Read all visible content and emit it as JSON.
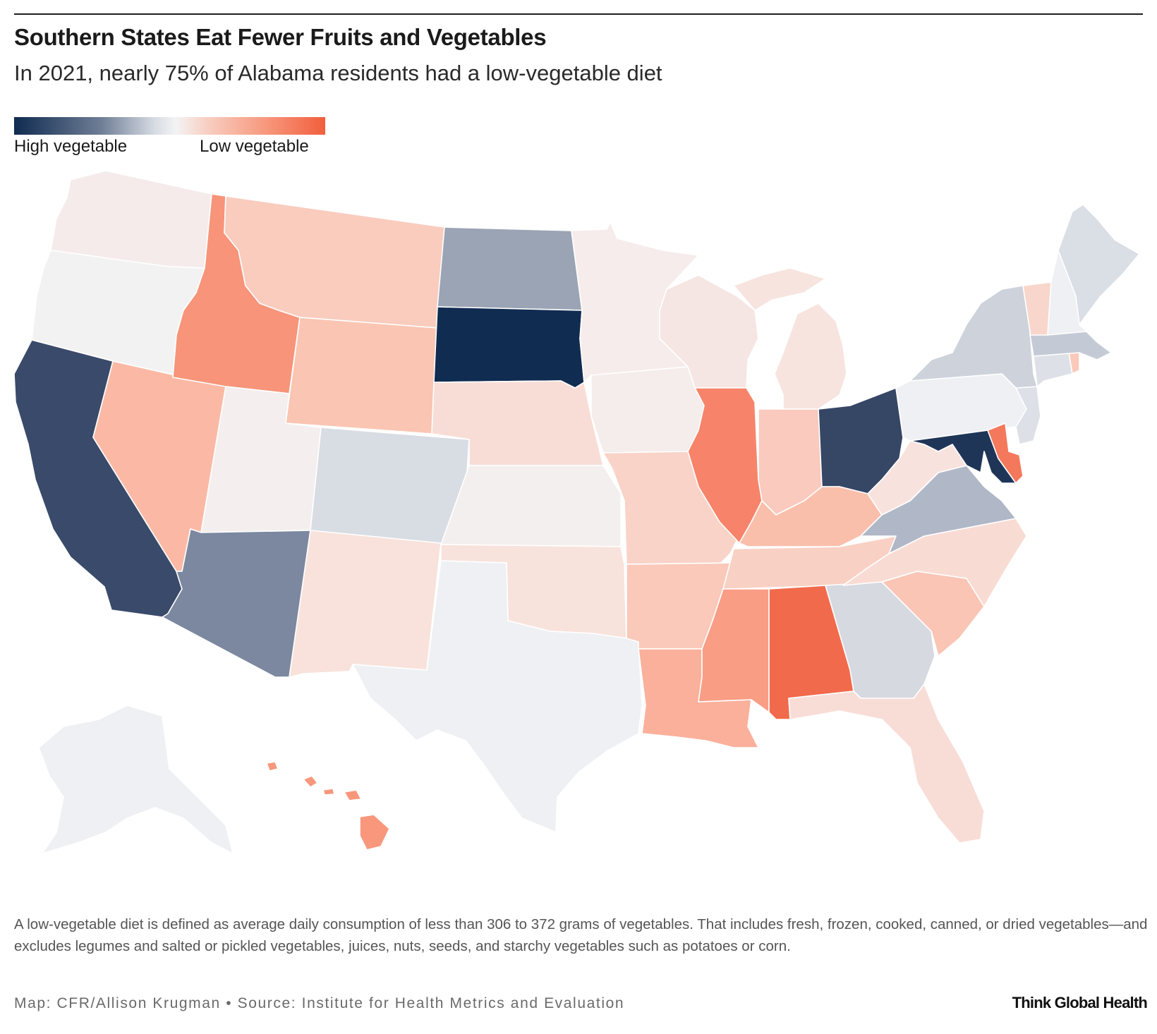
{
  "header": {
    "title": "Southern States Eat Fewer Fruits and Vegetables",
    "subtitle": "In 2021, nearly 75% of Alabama residents had a low-vegetable diet"
  },
  "legend": {
    "low_label": "High vegetable",
    "high_label": "Low vegetable",
    "colors": [
      "#0f2b50",
      "#6f7e96",
      "#d6dbe2",
      "#f3f3f4",
      "#f8cfc2",
      "#f79479",
      "#f15f3d"
    ]
  },
  "map": {
    "type": "choropleth",
    "regions": [
      {
        "name": "Washington",
        "color": "#f5ebea"
      },
      {
        "name": "Oregon",
        "color": "#f2f2f3"
      },
      {
        "name": "California",
        "color": "#3a4a6a"
      },
      {
        "name": "Nevada",
        "color": "#fbb9a5"
      },
      {
        "name": "Idaho",
        "color": "#f79479"
      },
      {
        "name": "Montana",
        "color": "#f9ccbe"
      },
      {
        "name": "Wyoming",
        "color": "#fac5b2"
      },
      {
        "name": "Utah",
        "color": "#f4eeee"
      },
      {
        "name": "Arizona",
        "color": "#7b889f"
      },
      {
        "name": "Colorado",
        "color": "#d8dce3"
      },
      {
        "name": "New Mexico",
        "color": "#f8e2db"
      },
      {
        "name": "North Dakota",
        "color": "#9ba4b4"
      },
      {
        "name": "South Dakota",
        "color": "#112c51"
      },
      {
        "name": "Nebraska",
        "color": "#f8ddd6"
      },
      {
        "name": "Kansas",
        "color": "#f4efef"
      },
      {
        "name": "Oklahoma",
        "color": "#f8e2dc"
      },
      {
        "name": "Texas",
        "color": "#eef0f3"
      },
      {
        "name": "Minnesota",
        "color": "#f5eceb"
      },
      {
        "name": "Iowa",
        "color": "#f5ecec"
      },
      {
        "name": "Missouri",
        "color": "#f9d3c8"
      },
      {
        "name": "Arkansas",
        "color": "#fac9b9"
      },
      {
        "name": "Louisiana",
        "color": "#fab09b"
      },
      {
        "name": "Wisconsin",
        "color": "#f6e6e3"
      },
      {
        "name": "Illinois",
        "color": "#f7846a"
      },
      {
        "name": "Michigan",
        "color": "#f7e4df"
      },
      {
        "name": "Indiana",
        "color": "#f9cabd"
      },
      {
        "name": "Ohio",
        "color": "#364665"
      },
      {
        "name": "Kentucky",
        "color": "#fabfab"
      },
      {
        "name": "Tennessee",
        "color": "#f9d0c4"
      },
      {
        "name": "Mississippi",
        "color": "#f99d85"
      },
      {
        "name": "Alabama",
        "color": "#f26a4c"
      },
      {
        "name": "Georgia",
        "color": "#d6d9e0"
      },
      {
        "name": "Florida",
        "color": "#f8ddd6"
      },
      {
        "name": "South Carolina",
        "color": "#fac5b5"
      },
      {
        "name": "North Carolina",
        "color": "#f8dcd4"
      },
      {
        "name": "Virginia",
        "color": "#b0b7c6"
      },
      {
        "name": "West Virginia",
        "color": "#f8e2dd"
      },
      {
        "name": "Maryland",
        "color": "#1f3558"
      },
      {
        "name": "Delaware",
        "color": "#f4785c"
      },
      {
        "name": "Pennsylvania",
        "color": "#eef0f3"
      },
      {
        "name": "New Jersey",
        "color": "#dde0e6"
      },
      {
        "name": "New York",
        "color": "#cdd2db"
      },
      {
        "name": "Connecticut",
        "color": "#dde1e7"
      },
      {
        "name": "Rhode Island",
        "color": "#fac9ba"
      },
      {
        "name": "Massachusetts",
        "color": "#c4cad5"
      },
      {
        "name": "Vermont",
        "color": "#f9d6cb"
      },
      {
        "name": "New Hampshire",
        "color": "#eef0f3"
      },
      {
        "name": "Maine",
        "color": "#dadee5"
      },
      {
        "name": "Alaska",
        "color": "#eef0f3"
      },
      {
        "name": "Hawaii",
        "color": "#f8977c"
      }
    ]
  },
  "footer": {
    "note": "A low-vegetable diet is defined as average daily consumption of less than 306 to 372 grams of vegetables. That includes fresh, frozen, cooked, canned, or dried vegetables—and excludes legumes and salted or pickled vegetables, juices, nuts, seeds, and starchy vegetables such as potatoes or corn.",
    "credit": "Map: CFR/Allison Krugman • Source: Institute for Health Metrics and Evaluation",
    "brand": "Think Global Health"
  }
}
